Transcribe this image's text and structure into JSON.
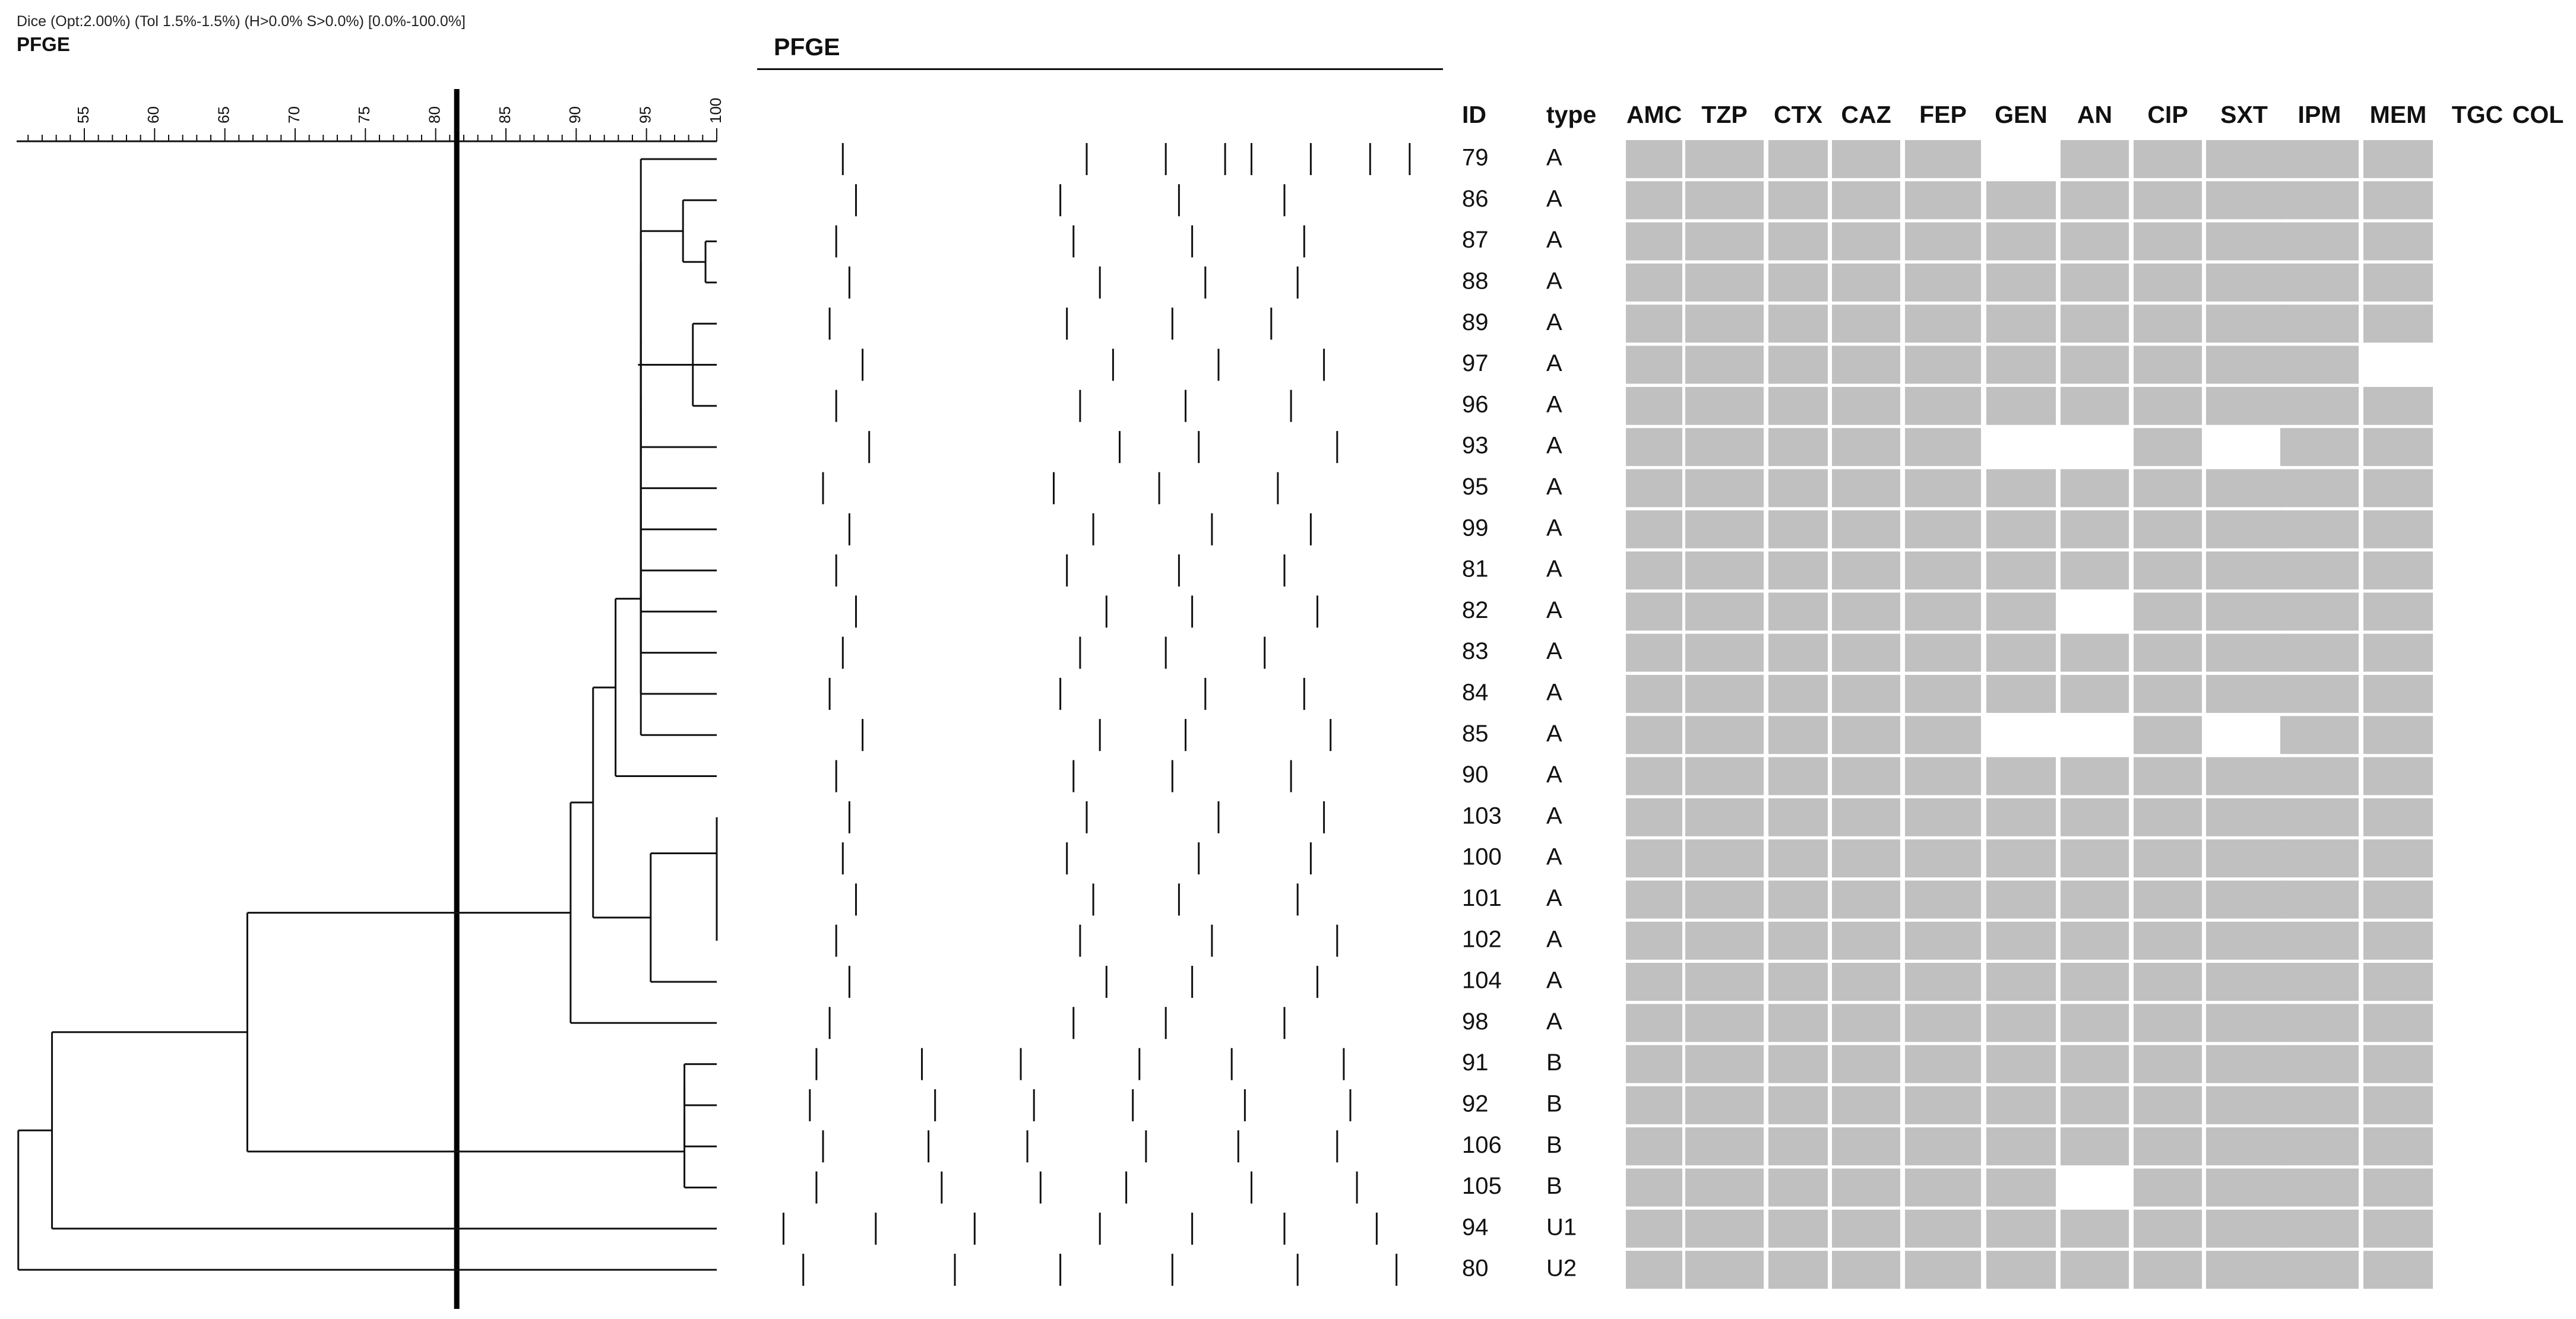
{
  "header": {
    "settings": "Dice (Opt:2.00%) (Tol 1.5%-1.5%) (H>0.0% S>0.0%) [0.0%-100.0%]",
    "title": "PFGE"
  },
  "gel": {
    "title": "PFGE"
  },
  "scale": {
    "ticks": [
      "55",
      "60",
      "65",
      "70",
      "75",
      "80",
      "85",
      "90",
      "95",
      "100"
    ],
    "cutoff": 81.5
  },
  "columns": {
    "id": "ID",
    "type": "type",
    "antibiotics": [
      "AMC",
      "TZP",
      "CTX",
      "CAZ",
      "FEP",
      "GEN",
      "AN",
      "CIP",
      "SXT",
      "IPM",
      "MEM",
      "TGC",
      "COL"
    ]
  },
  "isolates": [
    {
      "id": "79",
      "type": "A",
      "res": [
        1,
        1,
        1,
        1,
        1,
        0,
        1,
        1,
        1,
        1,
        1,
        0,
        0
      ]
    },
    {
      "id": "86",
      "type": "A",
      "res": [
        1,
        1,
        1,
        1,
        1,
        1,
        1,
        1,
        1,
        1,
        1,
        0,
        0
      ]
    },
    {
      "id": "87",
      "type": "A",
      "res": [
        1,
        1,
        1,
        1,
        1,
        1,
        1,
        1,
        1,
        1,
        1,
        0,
        0
      ]
    },
    {
      "id": "88",
      "type": "A",
      "res": [
        1,
        1,
        1,
        1,
        1,
        1,
        1,
        1,
        1,
        1,
        1,
        0,
        0
      ]
    },
    {
      "id": "89",
      "type": "A",
      "res": [
        1,
        1,
        1,
        1,
        1,
        1,
        1,
        1,
        1,
        1,
        1,
        0,
        0
      ]
    },
    {
      "id": "97",
      "type": "A",
      "res": [
        1,
        1,
        1,
        1,
        1,
        1,
        1,
        1,
        1,
        1,
        0,
        0,
        0
      ]
    },
    {
      "id": "96",
      "type": "A",
      "res": [
        1,
        1,
        1,
        1,
        1,
        1,
        1,
        1,
        1,
        1,
        1,
        0,
        0
      ]
    },
    {
      "id": "93",
      "type": "A",
      "res": [
        1,
        1,
        1,
        1,
        1,
        0,
        0,
        1,
        0,
        1,
        1,
        0,
        0
      ]
    },
    {
      "id": "95",
      "type": "A",
      "res": [
        1,
        1,
        1,
        1,
        1,
        1,
        1,
        1,
        1,
        1,
        1,
        0,
        0
      ]
    },
    {
      "id": "99",
      "type": "A",
      "res": [
        1,
        1,
        1,
        1,
        1,
        1,
        1,
        1,
        1,
        1,
        1,
        0,
        0
      ]
    },
    {
      "id": "81",
      "type": "A",
      "res": [
        1,
        1,
        1,
        1,
        1,
        1,
        1,
        1,
        1,
        1,
        1,
        0,
        0
      ]
    },
    {
      "id": "82",
      "type": "A",
      "res": [
        1,
        1,
        1,
        1,
        1,
        1,
        0,
        1,
        1,
        1,
        1,
        0,
        0
      ]
    },
    {
      "id": "83",
      "type": "A",
      "res": [
        1,
        1,
        1,
        1,
        1,
        1,
        1,
        1,
        1,
        1,
        1,
        0,
        0
      ]
    },
    {
      "id": "84",
      "type": "A",
      "res": [
        1,
        1,
        1,
        1,
        1,
        1,
        1,
        1,
        1,
        1,
        1,
        0,
        0
      ]
    },
    {
      "id": "85",
      "type": "A",
      "res": [
        1,
        1,
        1,
        1,
        1,
        0,
        0,
        1,
        0,
        1,
        1,
        0,
        0
      ]
    },
    {
      "id": "90",
      "type": "A",
      "res": [
        1,
        1,
        1,
        1,
        1,
        1,
        1,
        1,
        1,
        1,
        1,
        0,
        0
      ]
    },
    {
      "id": "103",
      "type": "A",
      "res": [
        1,
        1,
        1,
        1,
        1,
        1,
        1,
        1,
        1,
        1,
        1,
        0,
        0
      ]
    },
    {
      "id": "100",
      "type": "A",
      "res": [
        1,
        1,
        1,
        1,
        1,
        1,
        1,
        1,
        1,
        1,
        1,
        0,
        0
      ]
    },
    {
      "id": "101",
      "type": "A",
      "res": [
        1,
        1,
        1,
        1,
        1,
        1,
        1,
        1,
        1,
        1,
        1,
        0,
        0
      ]
    },
    {
      "id": "102",
      "type": "A",
      "res": [
        1,
        1,
        1,
        1,
        1,
        1,
        1,
        1,
        1,
        1,
        1,
        0,
        0
      ]
    },
    {
      "id": "104",
      "type": "A",
      "res": [
        1,
        1,
        1,
        1,
        1,
        1,
        1,
        1,
        1,
        1,
        1,
        0,
        0
      ]
    },
    {
      "id": "98",
      "type": "A",
      "res": [
        1,
        1,
        1,
        1,
        1,
        1,
        1,
        1,
        1,
        1,
        1,
        0,
        0
      ]
    },
    {
      "id": "91",
      "type": "B",
      "res": [
        1,
        1,
        1,
        1,
        1,
        1,
        1,
        1,
        1,
        1,
        1,
        0,
        0
      ]
    },
    {
      "id": "92",
      "type": "B",
      "res": [
        1,
        1,
        1,
        1,
        1,
        1,
        1,
        1,
        1,
        1,
        1,
        0,
        0
      ]
    },
    {
      "id": "106",
      "type": "B",
      "res": [
        1,
        1,
        1,
        1,
        1,
        1,
        1,
        1,
        1,
        1,
        1,
        0,
        0
      ]
    },
    {
      "id": "105",
      "type": "B",
      "res": [
        1,
        1,
        1,
        1,
        1,
        1,
        0,
        1,
        1,
        1,
        1,
        0,
        0
      ]
    },
    {
      "id": "94",
      "type": "U1",
      "res": [
        1,
        1,
        1,
        1,
        1,
        1,
        1,
        1,
        1,
        1,
        1,
        0,
        0
      ]
    },
    {
      "id": "80",
      "type": "U2",
      "res": [
        1,
        1,
        1,
        1,
        1,
        1,
        1,
        1,
        1,
        1,
        1,
        0,
        0
      ]
    }
  ],
  "dendrogram": {
    "nodes": [
      {
        "a": 2,
        "b": 3,
        "sim": 99.2
      },
      {
        "a": 4,
        "b": 6,
        "sim": 98.3
      },
      {
        "a": 28,
        "b": 1,
        "sim": 97.6
      },
      {
        "a": 29,
        "b": 5,
        "sim": 94.4
      },
      {
        "a": 30,
        "b": 7,
        "sim": 94.6
      },
      {
        "a": 31,
        "b": 0,
        "sim": 94.6
      },
      {
        "a": 32,
        "b": 8,
        "sim": 94.6
      },
      {
        "a": 33,
        "b": 9,
        "sim": 94.6
      },
      {
        "a": 34,
        "b": 10,
        "sim": 94.6
      },
      {
        "a": 35,
        "b": 11,
        "sim": 94.6
      },
      {
        "a": 36,
        "b": 12,
        "sim": 94.6
      },
      {
        "a": 37,
        "b": 13,
        "sim": 94.6
      },
      {
        "a": 38,
        "b": 14,
        "sim": 94.6
      },
      {
        "a": 39,
        "b": 15,
        "sim": 92.8
      },
      {
        "a": 18,
        "b": 19,
        "sim": 100.0
      },
      {
        "a": 17,
        "b": 42,
        "sim": 100.0
      },
      {
        "a": 16,
        "b": 43,
        "sim": 100.0
      },
      {
        "a": 44,
        "b": 20,
        "sim": 95.3
      },
      {
        "a": 41,
        "b": 45,
        "sim": 91.2
      },
      {
        "a": 46,
        "b": 21,
        "sim": 89.6
      },
      {
        "a": 22,
        "b": 23,
        "sim": 97.7
      },
      {
        "a": 48,
        "b": 24,
        "sim": 97.7
      },
      {
        "a": 49,
        "b": 25,
        "sim": 97.7
      },
      {
        "a": 47,
        "b": 50,
        "sim": 66.6
      },
      {
        "a": 51,
        "b": 26,
        "sim": 52.7
      },
      {
        "a": 52,
        "b": 27,
        "sim": 50.3
      }
    ]
  },
  "gel_bands": [
    [
      0.13,
      0.5,
      0.62,
      0.71,
      0.75,
      0.84,
      0.93,
      0.99
    ],
    [
      0.15,
      0.46,
      0.64,
      0.8
    ],
    [
      0.12,
      0.48,
      0.66,
      0.83
    ],
    [
      0.14,
      0.52,
      0.68,
      0.82
    ],
    [
      0.11,
      0.47,
      0.63,
      0.78
    ],
    [
      0.16,
      0.54,
      0.7,
      0.86
    ],
    [
      0.12,
      0.49,
      0.65,
      0.81
    ],
    [
      0.17,
      0.55,
      0.67,
      0.88
    ],
    [
      0.1,
      0.45,
      0.61,
      0.79
    ],
    [
      0.14,
      0.51,
      0.69,
      0.84
    ],
    [
      0.12,
      0.47,
      0.64,
      0.8
    ],
    [
      0.15,
      0.53,
      0.66,
      0.85
    ],
    [
      0.13,
      0.49,
      0.62,
      0.77
    ],
    [
      0.11,
      0.46,
      0.68,
      0.83
    ],
    [
      0.16,
      0.52,
      0.65,
      0.87
    ],
    [
      0.12,
      0.48,
      0.63,
      0.81
    ],
    [
      0.14,
      0.5,
      0.7,
      0.86
    ],
    [
      0.13,
      0.47,
      0.67,
      0.84
    ],
    [
      0.15,
      0.51,
      0.64,
      0.82
    ],
    [
      0.12,
      0.49,
      0.69,
      0.88
    ],
    [
      0.14,
      0.53,
      0.66,
      0.85
    ],
    [
      0.11,
      0.48,
      0.62,
      0.8
    ],
    [
      0.09,
      0.25,
      0.4,
      0.58,
      0.72,
      0.89
    ],
    [
      0.08,
      0.27,
      0.42,
      0.57,
      0.74,
      0.9
    ],
    [
      0.1,
      0.26,
      0.41,
      0.59,
      0.73,
      0.88
    ],
    [
      0.09,
      0.28,
      0.43,
      0.56,
      0.75,
      0.91
    ],
    [
      0.04,
      0.18,
      0.33,
      0.52,
      0.66,
      0.8,
      0.94
    ],
    [
      0.07,
      0.3,
      0.46,
      0.63,
      0.82,
      0.97
    ]
  ]
}
